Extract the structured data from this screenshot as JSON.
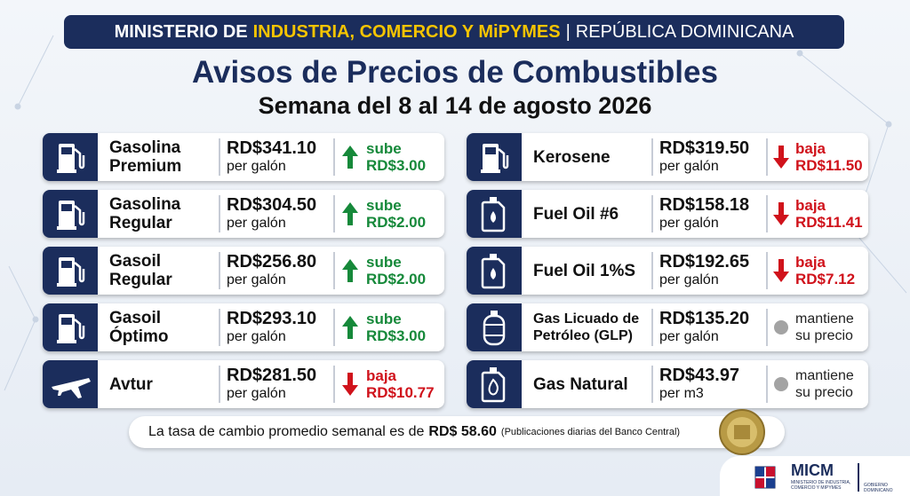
{
  "header": {
    "prefix": "MINISTERIO DE",
    "highlight": "INDUSTRIA, COMERCIO Y MiPYMES",
    "separator": "|",
    "country": "REPÚBLICA DOMINICANA"
  },
  "title": "Avisos de Precios de Combustibles",
  "subtitle": "Semana del 8 al 14 de agosto 2026",
  "left_items": [
    {
      "icon": "pump",
      "name": [
        "Gasolina",
        "Premium"
      ],
      "price": "RD$341.10",
      "unit": "per galón",
      "trend": "up",
      "change": [
        "sube",
        "RD$3.00"
      ]
    },
    {
      "icon": "pump",
      "name": [
        "Gasolina",
        "Regular"
      ],
      "price": "RD$304.50",
      "unit": "per galón",
      "trend": "up",
      "change": [
        "sube",
        "RD$2.00"
      ]
    },
    {
      "icon": "pump",
      "name": [
        "Gasoil",
        "Regular"
      ],
      "price": "RD$256.80",
      "unit": "per galón",
      "trend": "up",
      "change": [
        "sube",
        "RD$2.00"
      ]
    },
    {
      "icon": "pump",
      "name": [
        "Gasoil",
        "Óptimo"
      ],
      "price": "RD$293.10",
      "unit": "per galón",
      "trend": "up",
      "change": [
        "sube",
        "RD$3.00"
      ]
    },
    {
      "icon": "plane",
      "name": [
        "Avtur"
      ],
      "price": "RD$281.50",
      "unit": "per galón",
      "trend": "down",
      "change": [
        "baja",
        "RD$10.77"
      ]
    }
  ],
  "right_items": [
    {
      "icon": "pump",
      "name": [
        "Kerosene"
      ],
      "price": "RD$319.50",
      "unit": "per galón",
      "trend": "down",
      "change": [
        "baja",
        "RD$11.50"
      ]
    },
    {
      "icon": "can",
      "name": [
        "Fuel Oil #6"
      ],
      "price": "RD$158.18",
      "unit": "per galón",
      "trend": "down",
      "change": [
        "baja",
        "RD$11.41"
      ]
    },
    {
      "icon": "can",
      "name": [
        "Fuel Oil 1%S"
      ],
      "price": "RD$192.65",
      "unit": "per galón",
      "trend": "down",
      "change": [
        "baja",
        "RD$7.12"
      ]
    },
    {
      "icon": "cylinder",
      "name": [
        "Gas Licuado de",
        "Petróleo (GLP)"
      ],
      "price": "RD$135.20",
      "unit": "per galón",
      "trend": "same",
      "change": [
        "mantiene",
        "su precio"
      ]
    },
    {
      "icon": "flame",
      "name": [
        "Gas Natural"
      ],
      "price": "RD$43.97",
      "unit": "per m3",
      "trend": "same",
      "change": [
        "mantiene",
        "su precio"
      ]
    }
  ],
  "footer": {
    "text": "La tasa de cambio promedio semanal es de",
    "rate": "RD$ 58.60",
    "note": "(Publicaciones diarias del Banco Central)"
  },
  "logo": {
    "name": "MICM",
    "subtitle": "MINISTERIO DE INDUSTRIA, COMERCIO Y MIPYMES",
    "government": "GOBIERNO DOMINICANO"
  }
}
